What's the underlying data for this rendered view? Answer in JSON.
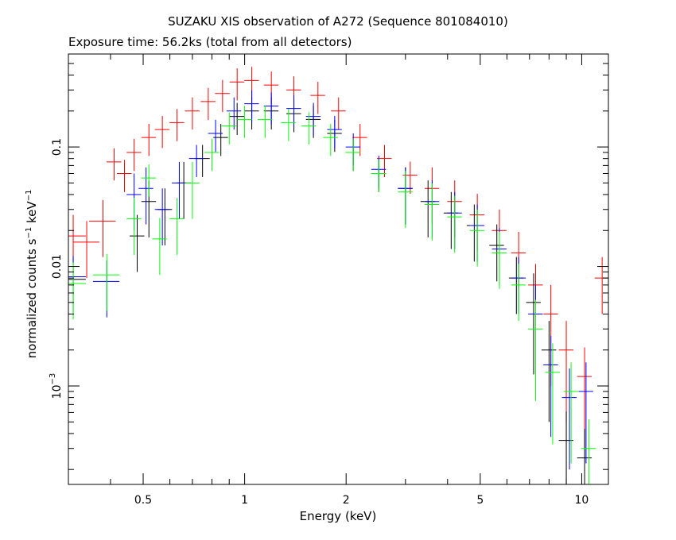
{
  "chart_data": {
    "type": "scatter",
    "title": "SUZAKU XIS observation of A272 (Sequence 801084010)",
    "subtitle": "Exposure time: 56.2ks (total from all detectors)",
    "xlabel": "Energy (keV)",
    "ylabel": {
      "pre": "normalized counts s",
      "sup1": "−1",
      "mid": " keV",
      "sup2": "−1"
    },
    "x_scale": "log",
    "y_scale": "log",
    "xlim": [
      0.3,
      12
    ],
    "ylim": [
      0.00015,
      0.6
    ],
    "x_ticks": [
      {
        "value": 0.5,
        "label": "0.5"
      },
      {
        "value": 1,
        "label": "1"
      },
      {
        "value": 2,
        "label": "2"
      },
      {
        "value": 5,
        "label": "5"
      },
      {
        "value": 10,
        "label": "10"
      }
    ],
    "y_ticks": [
      {
        "value": 0.1,
        "label": "0.1"
      },
      {
        "value": 0.01,
        "label": "0.01"
      },
      {
        "value": 0.001,
        "label": "10",
        "sup": "−3"
      }
    ],
    "grid": false,
    "legend": "none",
    "series": [
      {
        "color": "#ff0000",
        "points": [
          [
            0.31,
            0.018
          ],
          [
            0.34,
            0.016
          ],
          [
            0.38,
            0.024
          ],
          [
            0.41,
            0.075
          ],
          [
            0.44,
            0.06
          ],
          [
            0.47,
            0.09
          ],
          [
            0.52,
            0.12
          ],
          [
            0.57,
            0.14
          ],
          [
            0.63,
            0.16
          ],
          [
            0.7,
            0.2
          ],
          [
            0.78,
            0.24
          ],
          [
            0.86,
            0.28
          ],
          [
            0.95,
            0.35
          ],
          [
            1.05,
            0.36
          ],
          [
            1.2,
            0.33
          ],
          [
            1.4,
            0.3
          ],
          [
            1.65,
            0.27
          ],
          [
            1.9,
            0.2
          ],
          [
            2.2,
            0.12
          ],
          [
            2.6,
            0.08
          ],
          [
            3.1,
            0.058
          ],
          [
            3.6,
            0.045
          ],
          [
            4.2,
            0.035
          ],
          [
            4.9,
            0.027
          ],
          [
            5.7,
            0.02
          ],
          [
            6.5,
            0.013
          ],
          [
            7.3,
            0.007
          ],
          [
            8.1,
            0.004
          ],
          [
            9.0,
            0.002
          ],
          [
            10.2,
            0.0012
          ],
          [
            11.5,
            0.008
          ]
        ]
      },
      {
        "color": "#000000",
        "points": [
          [
            0.31,
            0.0078
          ],
          [
            0.48,
            0.018
          ],
          [
            0.52,
            0.035
          ],
          [
            0.58,
            0.03
          ],
          [
            0.66,
            0.05
          ],
          [
            0.75,
            0.08
          ],
          [
            0.85,
            0.12
          ],
          [
            0.95,
            0.18
          ],
          [
            1.05,
            0.2
          ],
          [
            1.2,
            0.2
          ],
          [
            1.4,
            0.19
          ],
          [
            1.6,
            0.17
          ],
          [
            1.85,
            0.13
          ],
          [
            2.1,
            0.09
          ],
          [
            2.5,
            0.06
          ],
          [
            3.0,
            0.045
          ],
          [
            3.5,
            0.035
          ],
          [
            4.1,
            0.028
          ],
          [
            4.8,
            0.022
          ],
          [
            5.6,
            0.015
          ],
          [
            6.4,
            0.008
          ],
          [
            7.2,
            0.005
          ],
          [
            8.0,
            0.002
          ],
          [
            9.0,
            0.00035
          ],
          [
            10.2,
            0.00025
          ]
        ]
      },
      {
        "color": "#0000ff",
        "points": [
          [
            0.31,
            0.0082
          ],
          [
            0.39,
            0.0075
          ],
          [
            0.47,
            0.04
          ],
          [
            0.51,
            0.045
          ],
          [
            0.57,
            0.03
          ],
          [
            0.64,
            0.05
          ],
          [
            0.72,
            0.08
          ],
          [
            0.82,
            0.13
          ],
          [
            0.93,
            0.2
          ],
          [
            1.05,
            0.23
          ],
          [
            1.2,
            0.22
          ],
          [
            1.4,
            0.21
          ],
          [
            1.6,
            0.18
          ],
          [
            1.85,
            0.14
          ],
          [
            2.1,
            0.1
          ],
          [
            2.5,
            0.065
          ],
          [
            3.0,
            0.045
          ],
          [
            3.6,
            0.035
          ],
          [
            4.2,
            0.028
          ],
          [
            4.9,
            0.022
          ],
          [
            5.7,
            0.014
          ],
          [
            6.5,
            0.008
          ],
          [
            7.3,
            0.004
          ],
          [
            8.1,
            0.0015
          ],
          [
            9.2,
            0.0008
          ],
          [
            10.3,
            0.0009
          ]
        ]
      },
      {
        "color": "#00ff00",
        "points": [
          [
            0.31,
            0.0072
          ],
          [
            0.39,
            0.0085
          ],
          [
            0.47,
            0.025
          ],
          [
            0.52,
            0.055
          ],
          [
            0.56,
            0.017
          ],
          [
            0.63,
            0.025
          ],
          [
            0.7,
            0.05
          ],
          [
            0.8,
            0.09
          ],
          [
            0.9,
            0.15
          ],
          [
            1.0,
            0.17
          ],
          [
            1.15,
            0.17
          ],
          [
            1.35,
            0.16
          ],
          [
            1.55,
            0.15
          ],
          [
            1.8,
            0.12
          ],
          [
            2.1,
            0.09
          ],
          [
            2.5,
            0.06
          ],
          [
            3.0,
            0.042
          ],
          [
            3.6,
            0.033
          ],
          [
            4.2,
            0.026
          ],
          [
            4.9,
            0.02
          ],
          [
            5.7,
            0.013
          ],
          [
            6.5,
            0.007
          ],
          [
            7.3,
            0.003
          ],
          [
            8.2,
            0.0013
          ],
          [
            9.3,
            0.0009
          ],
          [
            10.5,
            0.0003
          ]
        ]
      }
    ]
  }
}
